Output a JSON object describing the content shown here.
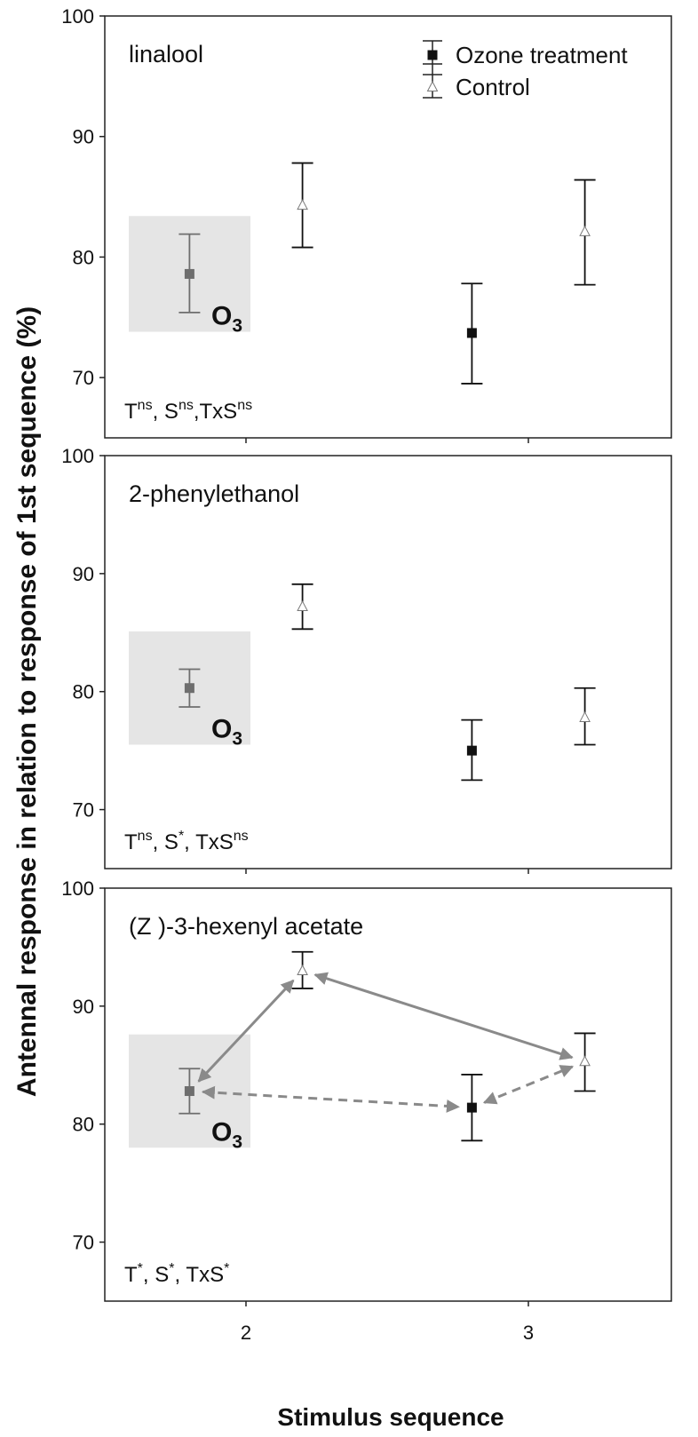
{
  "chart_data": [
    {
      "type": "scatter",
      "panel_title": "linalool",
      "x_ticks": [
        "2",
        "3"
      ],
      "ylim": [
        65,
        100
      ],
      "y_ticks": [
        70,
        80,
        90,
        100
      ],
      "series": [
        {
          "name": "Ozone treatment",
          "marker": "filled-square",
          "points": [
            {
              "x": 1.8,
              "y": 78.6,
              "lo": 75.4,
              "hi": 81.9,
              "highlight": true
            },
            {
              "x": 2.8,
              "y": 73.7,
              "lo": 69.5,
              "hi": 77.8
            }
          ]
        },
        {
          "name": "Control",
          "marker": "open-triangle",
          "points": [
            {
              "x": 2.2,
              "y": 84.3,
              "lo": 80.8,
              "hi": 87.8
            },
            {
              "x": 3.2,
              "y": 82.1,
              "lo": 77.7,
              "hi": 86.4
            }
          ]
        }
      ],
      "highlight_label": "O3",
      "stats": [
        {
          "base": "T",
          "sup": "ns",
          "sep": ", "
        },
        {
          "base": "S",
          "sup": "ns",
          "sep": ","
        },
        {
          "base": "TxS",
          "sup": "ns",
          "sep": ""
        }
      ],
      "show_legend": true,
      "arrows": []
    },
    {
      "type": "scatter",
      "panel_title": "2-phenylethanol",
      "x_ticks": [
        "2",
        "3"
      ],
      "ylim": [
        65,
        100
      ],
      "y_ticks": [
        70,
        80,
        90,
        100
      ],
      "series": [
        {
          "name": "Ozone treatment",
          "marker": "filled-square",
          "points": [
            {
              "x": 1.8,
              "y": 80.3,
              "lo": 78.7,
              "hi": 81.9,
              "highlight": true
            },
            {
              "x": 2.8,
              "y": 75.0,
              "lo": 72.5,
              "hi": 77.6
            }
          ]
        },
        {
          "name": "Control",
          "marker": "open-triangle",
          "points": [
            {
              "x": 2.2,
              "y": 87.2,
              "lo": 85.3,
              "hi": 89.1
            },
            {
              "x": 3.2,
              "y": 77.8,
              "lo": 75.5,
              "hi": 80.3
            }
          ]
        }
      ],
      "highlight_label": "O3",
      "stats": [
        {
          "base": "T",
          "sup": "ns",
          "sep": ", "
        },
        {
          "base": "S",
          "sup": "*",
          "sep": ", "
        },
        {
          "base": "TxS",
          "sup": "ns",
          "sep": ""
        }
      ],
      "show_legend": false,
      "arrows": []
    },
    {
      "type": "scatter",
      "panel_title": "(Z )-3-hexenyl acetate",
      "x_ticks": [
        "2",
        "3"
      ],
      "ylim": [
        65,
        100
      ],
      "y_ticks": [
        70,
        80,
        90,
        100
      ],
      "series": [
        {
          "name": "Ozone treatment",
          "marker": "filled-square",
          "points": [
            {
              "x": 1.8,
              "y": 82.8,
              "lo": 80.9,
              "hi": 84.7,
              "highlight": true
            },
            {
              "x": 2.8,
              "y": 81.4,
              "lo": 78.6,
              "hi": 84.2
            }
          ]
        },
        {
          "name": "Control",
          "marker": "open-triangle",
          "points": [
            {
              "x": 2.2,
              "y": 93.0,
              "lo": 91.5,
              "hi": 94.6
            },
            {
              "x": 3.2,
              "y": 85.3,
              "lo": 82.8,
              "hi": 87.7
            }
          ]
        }
      ],
      "highlight_label": "O3",
      "stats": [
        {
          "base": "T",
          "sup": "*",
          "sep": ", "
        },
        {
          "base": "S",
          "sup": "*",
          "sep": ", "
        },
        {
          "base": "TxS",
          "sup": "*",
          "sep": ""
        }
      ],
      "show_legend": false,
      "arrows": [
        {
          "from": [
            1.8,
            82.8
          ],
          "to": [
            2.2,
            93.0
          ],
          "style": "solid"
        },
        {
          "from": [
            2.2,
            93.0
          ],
          "to": [
            3.2,
            85.3
          ],
          "style": "solid"
        },
        {
          "from": [
            1.8,
            82.8
          ],
          "to": [
            2.8,
            81.4
          ],
          "style": "dashed"
        },
        {
          "from": [
            2.8,
            81.4
          ],
          "to": [
            3.2,
            85.3
          ],
          "style": "dashed"
        }
      ]
    }
  ],
  "ylabel": "Antennal response in relation to response of 1st sequence (%)",
  "xlabel": "Stimulus sequence",
  "legend": [
    {
      "name": "Ozone treatment",
      "marker": "filled-square"
    },
    {
      "name": "Control",
      "marker": "open-triangle"
    }
  ],
  "colors": {
    "highlight_box": "#e5e5e5",
    "highlight_point": "#6e6e6e",
    "arrow": "#8a8a8a",
    "ink": "#111111"
  }
}
